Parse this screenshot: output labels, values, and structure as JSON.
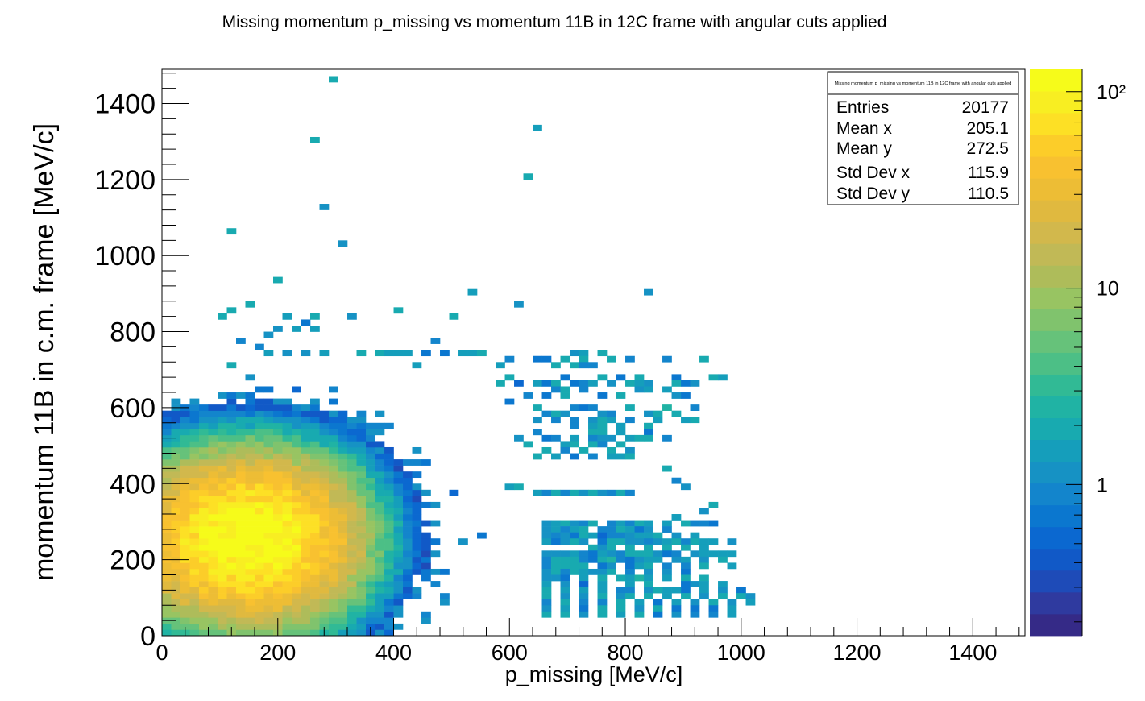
{
  "chart_data": {
    "type": "heatmap",
    "title": "Missing momentum p_missing vs momentum 11B in 12C frame with angular cuts applied",
    "xlabel": "p_missing [MeV/c]",
    "ylabel": "momentum 11B in c.m. frame [MeV/c]",
    "xlim": [
      0,
      1490
    ],
    "ylim": [
      0,
      1490
    ],
    "xticks": [
      0,
      200,
      400,
      600,
      800,
      1000,
      1200,
      1400
    ],
    "yticks": [
      0,
      200,
      400,
      600,
      800,
      1000,
      1200,
      1400
    ],
    "bin_width": 16,
    "z_scale": "log",
    "z_range": [
      0.17,
      130
    ],
    "z_tick_labels": [
      "1",
      "10",
      "10²"
    ],
    "palette": [
      "#352a87",
      "#2f3a9f",
      "#1e4bb8",
      "#1159c7",
      "#0b68d0",
      "#0b77cf",
      "#1385cc",
      "#1692c4",
      "#159ebb",
      "#18aab0",
      "#20b3a4",
      "#31ba95",
      "#4cbf86",
      "#66c27a",
      "#80c36d",
      "#98c462",
      "#aebc5a",
      "#c1b956",
      "#d2b84c",
      "#e0b93f",
      "#edbd35",
      "#f8c130",
      "#fccd29",
      "#fde025",
      "#f8ee22",
      "#f6fb1a"
    ],
    "cluster": {
      "x0": 150,
      "y0": 255,
      "sx": 95,
      "sy": 105,
      "peak": 125
    },
    "sparse_bins": [
      [
        295,
        1465
      ],
      [
        645,
        1335
      ],
      [
        263,
        1305
      ],
      [
        632,
        1210
      ],
      [
        279,
        1125
      ],
      [
        125,
        1065
      ],
      [
        311,
        1030
      ],
      [
        199,
        935
      ],
      [
        535,
        905
      ],
      [
        839,
        905
      ],
      [
        151,
        870
      ],
      [
        615,
        870
      ],
      [
        103,
        840
      ],
      [
        119,
        855
      ],
      [
        215,
        845
      ],
      [
        263,
        840
      ],
      [
        327,
        835
      ],
      [
        407,
        855
      ],
      [
        503,
        845
      ],
      [
        231,
        815
      ],
      [
        247,
        825
      ],
      [
        263,
        815
      ],
      [
        199,
        805
      ],
      [
        183,
        790
      ],
      [
        135,
        775
      ],
      [
        471,
        775
      ],
      [
        167,
        755
      ],
      [
        183,
        745
      ],
      [
        215,
        745
      ],
      [
        247,
        745
      ],
      [
        279,
        745
      ],
      [
        343,
        745
      ],
      [
        375,
        745
      ],
      [
        391,
        745
      ],
      [
        407,
        745
      ],
      [
        423,
        745
      ],
      [
        455,
        745
      ],
      [
        487,
        745
      ],
      [
        519,
        745
      ],
      [
        535,
        745
      ],
      [
        551,
        745
      ],
      [
        711,
        745
      ],
      [
        727,
        745
      ],
      [
        759,
        745
      ],
      [
        647,
        720
      ],
      [
        663,
        720
      ],
      [
        695,
        720
      ],
      [
        727,
        720
      ],
      [
        775,
        720
      ],
      [
        807,
        720
      ],
      [
        871,
        720
      ],
      [
        935,
        720
      ],
      [
        119,
        710
      ],
      [
        439,
        705
      ],
      [
        583,
        705
      ],
      [
        599,
        720
      ],
      [
        679,
        705
      ],
      [
        711,
        705
      ],
      [
        727,
        705
      ],
      [
        743,
        705
      ],
      [
        599,
        685
      ],
      [
        695,
        685
      ],
      [
        759,
        685
      ],
      [
        791,
        685
      ],
      [
        823,
        685
      ],
      [
        887,
        685
      ],
      [
        951,
        685
      ],
      [
        967,
        685
      ],
      [
        583,
        670
      ],
      [
        615,
        670
      ],
      [
        647,
        670
      ],
      [
        663,
        670
      ],
      [
        679,
        670
      ],
      [
        711,
        670
      ],
      [
        727,
        670
      ],
      [
        743,
        670
      ],
      [
        775,
        670
      ],
      [
        807,
        670
      ],
      [
        823,
        670
      ],
      [
        839,
        670
      ],
      [
        887,
        670
      ],
      [
        903,
        670
      ],
      [
        919,
        670
      ],
      [
        679,
        650
      ],
      [
        695,
        650
      ],
      [
        727,
        650
      ],
      [
        823,
        650
      ],
      [
        839,
        650
      ],
      [
        871,
        650
      ],
      [
        631,
        625
      ],
      [
        663,
        625
      ],
      [
        695,
        625
      ],
      [
        759,
        625
      ],
      [
        791,
        625
      ],
      [
        887,
        625
      ],
      [
        903,
        625
      ],
      [
        599,
        610
      ],
      [
        647,
        605
      ],
      [
        711,
        605
      ],
      [
        727,
        605
      ],
      [
        743,
        605
      ],
      [
        807,
        605
      ],
      [
        871,
        605
      ],
      [
        919,
        605
      ],
      [
        663,
        590
      ],
      [
        679,
        590
      ],
      [
        695,
        590
      ],
      [
        759,
        590
      ],
      [
        775,
        590
      ],
      [
        839,
        590
      ],
      [
        855,
        590
      ],
      [
        887,
        590
      ],
      [
        655,
        560
      ],
      [
        687,
        560
      ],
      [
        719,
        560
      ],
      [
        751,
        560
      ],
      [
        767,
        560
      ],
      [
        783,
        560
      ],
      [
        815,
        560
      ],
      [
        863,
        560
      ],
      [
        911,
        560
      ],
      [
        927,
        560
      ],
      [
        711,
        545
      ],
      [
        743,
        545
      ],
      [
        759,
        545
      ],
      [
        791,
        545
      ],
      [
        839,
        545
      ],
      [
        655,
        530
      ],
      [
        751,
        530
      ],
      [
        767,
        530
      ],
      [
        799,
        530
      ],
      [
        847,
        530
      ],
      [
        615,
        515
      ],
      [
        663,
        515
      ],
      [
        679,
        515
      ],
      [
        711,
        515
      ],
      [
        743,
        515
      ],
      [
        759,
        515
      ],
      [
        775,
        515
      ],
      [
        807,
        515
      ],
      [
        823,
        515
      ],
      [
        839,
        515
      ],
      [
        871,
        515
      ],
      [
        631,
        500
      ],
      [
        695,
        500
      ],
      [
        711,
        500
      ],
      [
        743,
        500
      ],
      [
        759,
        500
      ],
      [
        791,
        500
      ],
      [
        663,
        480
      ],
      [
        695,
        480
      ],
      [
        727,
        480
      ],
      [
        775,
        480
      ],
      [
        807,
        480
      ],
      [
        647,
        465
      ],
      [
        679,
        465
      ],
      [
        711,
        465
      ],
      [
        743,
        465
      ],
      [
        775,
        465
      ],
      [
        791,
        465
      ],
      [
        807,
        465
      ],
      [
        871,
        440
      ],
      [
        903,
        390
      ],
      [
        887,
        410
      ],
      [
        791,
        375
      ],
      [
        807,
        380
      ],
      [
        599,
        385
      ],
      [
        615,
        385
      ],
      [
        647,
        380
      ],
      [
        663,
        380
      ],
      [
        679,
        380
      ],
      [
        695,
        380
      ],
      [
        711,
        380
      ],
      [
        727,
        380
      ],
      [
        743,
        380
      ],
      [
        759,
        380
      ],
      [
        775,
        380
      ],
      [
        951,
        340
      ],
      [
        935,
        325
      ],
      [
        951,
        300
      ],
      [
        887,
        310
      ],
      [
        871,
        295
      ],
      [
        903,
        290
      ],
      [
        919,
        290
      ],
      [
        935,
        290
      ],
      [
        951,
        290
      ],
      [
        663,
        300
      ],
      [
        679,
        300
      ],
      [
        695,
        300
      ],
      [
        711,
        300
      ],
      [
        727,
        300
      ],
      [
        743,
        300
      ],
      [
        775,
        300
      ],
      [
        791,
        300
      ],
      [
        807,
        300
      ],
      [
        823,
        300
      ],
      [
        839,
        300
      ],
      [
        663,
        280
      ],
      [
        679,
        280
      ],
      [
        695,
        280
      ],
      [
        711,
        280
      ],
      [
        727,
        280
      ],
      [
        759,
        280
      ],
      [
        775,
        280
      ],
      [
        791,
        280
      ],
      [
        807,
        280
      ],
      [
        823,
        280
      ],
      [
        839,
        280
      ],
      [
        871,
        280
      ],
      [
        663,
        265
      ],
      [
        679,
        265
      ],
      [
        695,
        265
      ],
      [
        711,
        265
      ],
      [
        727,
        265
      ],
      [
        743,
        265
      ],
      [
        759,
        265
      ],
      [
        775,
        265
      ],
      [
        791,
        265
      ],
      [
        807,
        265
      ],
      [
        823,
        265
      ],
      [
        839,
        265
      ],
      [
        855,
        265
      ],
      [
        887,
        265
      ],
      [
        919,
        265
      ],
      [
        663,
        250
      ],
      [
        679,
        250
      ],
      [
        695,
        250
      ],
      [
        711,
        250
      ],
      [
        727,
        250
      ],
      [
        759,
        250
      ],
      [
        775,
        250
      ],
      [
        791,
        250
      ],
      [
        807,
        250
      ],
      [
        823,
        250
      ],
      [
        839,
        250
      ],
      [
        855,
        250
      ],
      [
        871,
        250
      ],
      [
        887,
        250
      ],
      [
        903,
        250
      ],
      [
        919,
        250
      ],
      [
        935,
        250
      ],
      [
        951,
        250
      ],
      [
        983,
        250
      ],
      [
        743,
        230
      ],
      [
        759,
        230
      ],
      [
        775,
        230
      ],
      [
        807,
        230
      ],
      [
        839,
        230
      ],
      [
        871,
        230
      ],
      [
        903,
        230
      ],
      [
        935,
        230
      ],
      [
        663,
        215
      ],
      [
        679,
        215
      ],
      [
        695,
        215
      ],
      [
        711,
        215
      ],
      [
        727,
        215
      ],
      [
        743,
        215
      ],
      [
        759,
        215
      ],
      [
        775,
        215
      ],
      [
        791,
        215
      ],
      [
        807,
        215
      ],
      [
        823,
        215
      ],
      [
        839,
        215
      ],
      [
        855,
        215
      ],
      [
        871,
        215
      ],
      [
        887,
        215
      ],
      [
        919,
        215
      ],
      [
        935,
        215
      ],
      [
        951,
        215
      ],
      [
        967,
        215
      ],
      [
        983,
        215
      ],
      [
        663,
        200
      ],
      [
        679,
        200
      ],
      [
        695,
        200
      ],
      [
        711,
        200
      ],
      [
        727,
        200
      ],
      [
        743,
        200
      ],
      [
        759,
        200
      ],
      [
        775,
        200
      ],
      [
        791,
        200
      ],
      [
        807,
        200
      ],
      [
        823,
        200
      ],
      [
        839,
        200
      ],
      [
        855,
        200
      ],
      [
        887,
        200
      ],
      [
        903,
        200
      ],
      [
        935,
        200
      ],
      [
        967,
        200
      ],
      [
        663,
        185
      ],
      [
        679,
        185
      ],
      [
        695,
        185
      ],
      [
        711,
        185
      ],
      [
        727,
        185
      ],
      [
        759,
        185
      ],
      [
        775,
        185
      ],
      [
        807,
        185
      ],
      [
        823,
        185
      ],
      [
        839,
        185
      ],
      [
        871,
        185
      ],
      [
        903,
        185
      ],
      [
        935,
        185
      ],
      [
        983,
        185
      ],
      [
        663,
        170
      ],
      [
        679,
        170
      ],
      [
        695,
        170
      ],
      [
        711,
        170
      ],
      [
        727,
        170
      ],
      [
        743,
        170
      ],
      [
        759,
        170
      ],
      [
        775,
        170
      ],
      [
        807,
        170
      ],
      [
        839,
        170
      ],
      [
        871,
        170
      ],
      [
        903,
        170
      ],
      [
        663,
        155
      ],
      [
        679,
        155
      ],
      [
        695,
        155
      ],
      [
        727,
        155
      ],
      [
        759,
        155
      ],
      [
        791,
        155
      ],
      [
        807,
        155
      ],
      [
        823,
        155
      ],
      [
        839,
        155
      ],
      [
        871,
        155
      ],
      [
        903,
        155
      ],
      [
        935,
        155
      ],
      [
        663,
        140
      ],
      [
        695,
        140
      ],
      [
        727,
        140
      ],
      [
        759,
        140
      ],
      [
        807,
        140
      ],
      [
        839,
        140
      ],
      [
        903,
        140
      ],
      [
        919,
        140
      ],
      [
        935,
        140
      ],
      [
        967,
        140
      ],
      [
        663,
        120
      ],
      [
        695,
        120
      ],
      [
        727,
        120
      ],
      [
        759,
        120
      ],
      [
        791,
        120
      ],
      [
        807,
        120
      ],
      [
        839,
        120
      ],
      [
        855,
        120
      ],
      [
        871,
        120
      ],
      [
        887,
        120
      ],
      [
        903,
        120
      ],
      [
        935,
        120
      ],
      [
        967,
        120
      ],
      [
        999,
        120
      ],
      [
        663,
        105
      ],
      [
        695,
        105
      ],
      [
        727,
        105
      ],
      [
        759,
        105
      ],
      [
        791,
        105
      ],
      [
        807,
        105
      ],
      [
        839,
        105
      ],
      [
        871,
        105
      ],
      [
        903,
        105
      ],
      [
        935,
        105
      ],
      [
        967,
        105
      ],
      [
        999,
        105
      ],
      [
        1015,
        105
      ],
      [
        663,
        90
      ],
      [
        695,
        90
      ],
      [
        727,
        90
      ],
      [
        759,
        90
      ],
      [
        791,
        90
      ],
      [
        823,
        90
      ],
      [
        855,
        90
      ],
      [
        887,
        90
      ],
      [
        919,
        90
      ],
      [
        951,
        90
      ],
      [
        983,
        90
      ],
      [
        1015,
        90
      ],
      [
        663,
        75
      ],
      [
        695,
        75
      ],
      [
        727,
        75
      ],
      [
        759,
        75
      ],
      [
        791,
        75
      ],
      [
        823,
        75
      ],
      [
        855,
        75
      ],
      [
        887,
        75
      ],
      [
        919,
        75
      ],
      [
        951,
        75
      ],
      [
        983,
        75
      ],
      [
        663,
        55
      ],
      [
        695,
        55
      ],
      [
        727,
        55
      ],
      [
        759,
        55
      ],
      [
        791,
        55
      ],
      [
        823,
        55
      ],
      [
        855,
        55
      ],
      [
        887,
        55
      ],
      [
        919,
        55
      ],
      [
        951,
        55
      ],
      [
        983,
        55
      ]
    ],
    "stats": {
      "title": "Missing momentum p_missing vs momentum 11B in 12C frame with angular cuts applied",
      "rows": [
        {
          "label": "Entries",
          "value": "20177"
        },
        {
          "label": "Mean x",
          "value": "205.1"
        },
        {
          "label": "Mean y",
          "value": "272.5"
        },
        {
          "label": "Std Dev x",
          "value": "115.9"
        },
        {
          "label": "Std Dev y",
          "value": "110.5"
        }
      ]
    }
  }
}
